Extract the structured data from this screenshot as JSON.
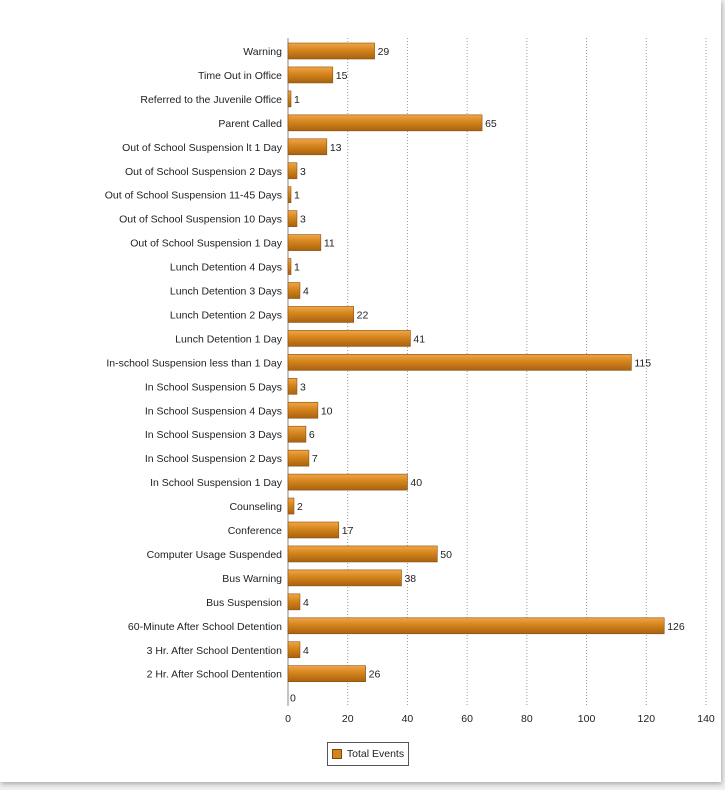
{
  "chart_data": {
    "type": "bar",
    "orientation": "horizontal",
    "categories": [
      "Warning",
      "Time Out in Office",
      "Referred to the Juvenile Office",
      "Parent Called",
      "Out of School Suspension lt 1 Day",
      "Out of School Suspension 2 Days",
      "Out of School Suspension 11-45 Days",
      "Out of School Suspension 10 Days",
      "Out of School Suspension 1 Day",
      "Lunch Detention 4 Days",
      "Lunch Detention 3 Days",
      "Lunch Detention 2 Days",
      "Lunch Detention 1 Day",
      "In-school Suspension less than 1 Day",
      "In School Suspension 5 Days",
      "In School Suspension 4 Days",
      "In School Suspension 3 Days",
      "In School Suspension 2 Days",
      "In School Suspension 1 Day",
      "Counseling",
      "Conference",
      "Computer Usage Suspended",
      "Bus Warning",
      "Bus Suspension",
      "60-Minute After School Detention",
      "3 Hr. After School Dentention",
      "2 Hr. After School Dentention"
    ],
    "series": [
      {
        "name": "Total Events",
        "values": [
          29,
          15,
          1,
          65,
          13,
          3,
          1,
          3,
          11,
          1,
          4,
          22,
          41,
          115,
          3,
          10,
          6,
          7,
          40,
          2,
          17,
          50,
          38,
          4,
          126,
          4,
          26
        ]
      }
    ],
    "xlim": [
      0,
      140
    ],
    "xticks": [
      0,
      20,
      40,
      60,
      80,
      100,
      120,
      140
    ],
    "zero_label": "0",
    "grid": "vertical dotted",
    "legend": "bottom-center",
    "bar_color": "#d4841c"
  }
}
